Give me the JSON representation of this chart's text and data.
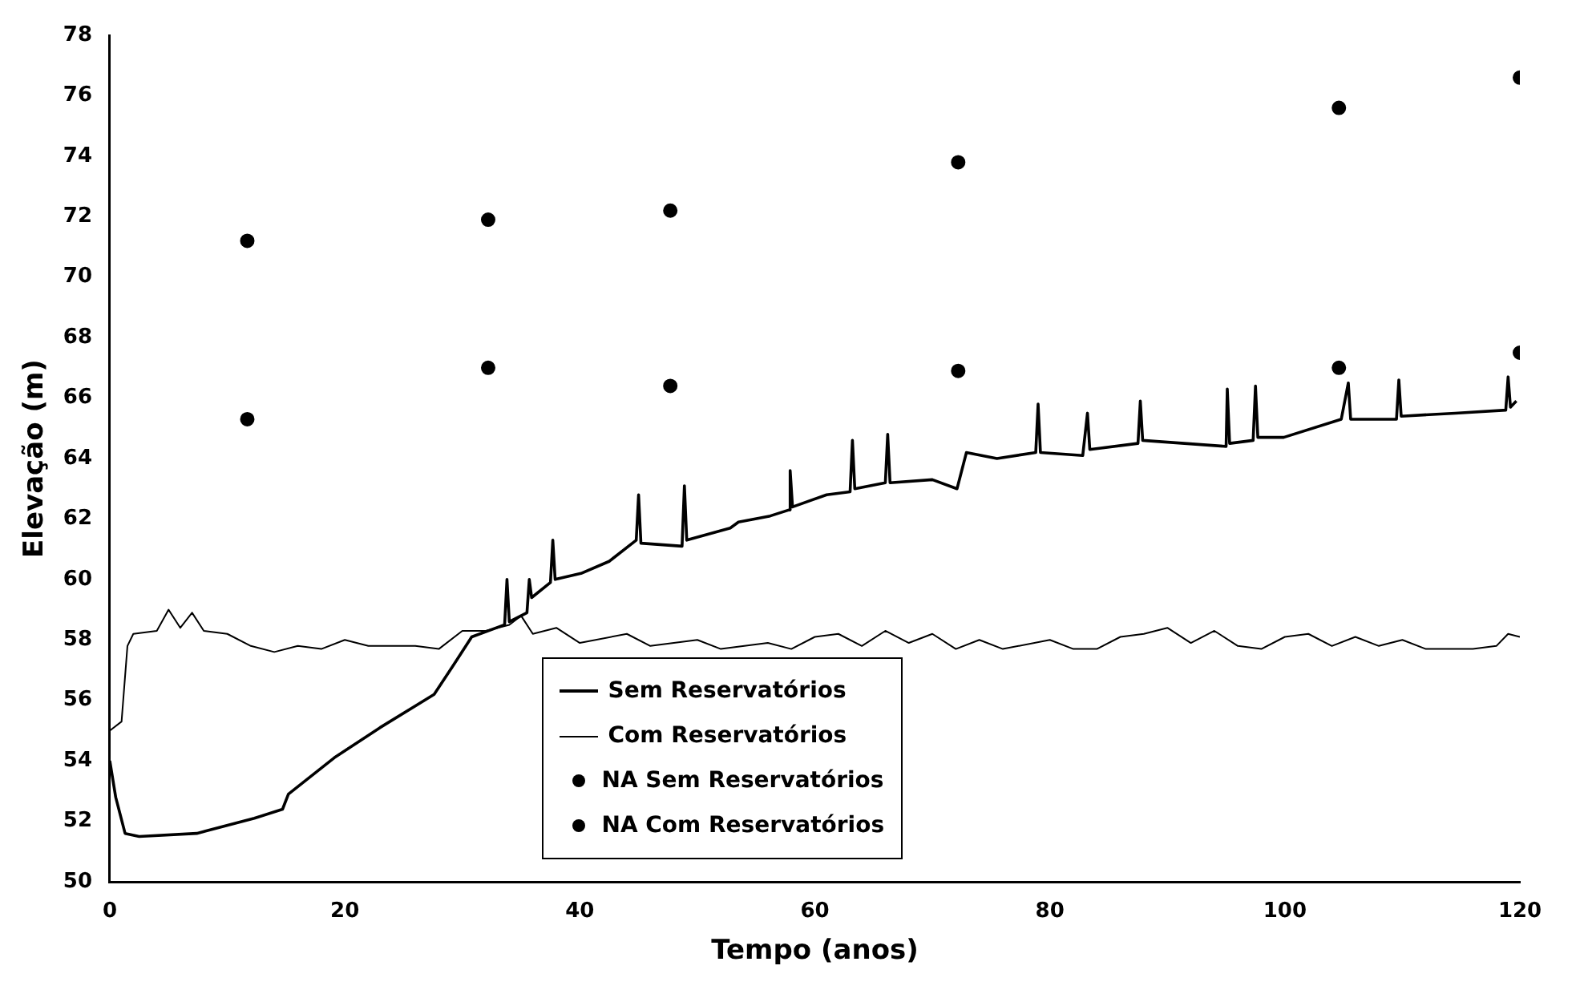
{
  "chart_data": {
    "type": "line",
    "xlabel": "Tempo (anos)",
    "ylabel": "Elevação (m)",
    "xlim": [
      0,
      120
    ],
    "xticks": [
      0,
      20,
      40,
      60,
      80,
      100,
      120
    ],
    "ylim": [
      50,
      78
    ],
    "yticks": [
      50,
      52,
      54,
      56,
      58,
      60,
      62,
      64,
      66,
      68,
      70,
      72,
      74,
      76,
      78
    ],
    "grid": false,
    "legend": "bottom",
    "marker": "none",
    "line_style": "solid",
    "series": [
      {
        "name": "Sem Reservatórios",
        "type": "line",
        "color": "#000000",
        "x": [
          0,
          0.5,
          1.3,
          2.5,
          7.4,
          12.3,
          14.7,
          15.2,
          19.1,
          23,
          27.6,
          29.3,
          30.8,
          33.6,
          33.8,
          34,
          35.5,
          35.7,
          35.9,
          37.5,
          37.7,
          37.9,
          40.1,
          42.5,
          44.8,
          45,
          45.2,
          48.7,
          48.9,
          49.1,
          52.8,
          53.5,
          56.2,
          57.8,
          57.9,
          58.1,
          61,
          63,
          63.2,
          63.4,
          66,
          66.2,
          66.4,
          70,
          72.1,
          72.9,
          75.5,
          78.8,
          79,
          79.2,
          82.8,
          83.2,
          83.4,
          87.5,
          87.7,
          87.9,
          95,
          95.1,
          95.3,
          97.3,
          97.5,
          97.7,
          99.9,
          104.8,
          105.4,
          105.6,
          109.5,
          109.7,
          109.9,
          114.5,
          118.8,
          119,
          119.2,
          119.7
        ],
        "values": [
          54,
          52.8,
          51.6,
          51.5,
          51.6,
          52.1,
          52.4,
          52.9,
          54.1,
          55.1,
          56.2,
          57.2,
          58.1,
          58.5,
          60,
          58.6,
          58.9,
          60,
          59.4,
          59.9,
          61.3,
          60,
          60.2,
          60.6,
          61.3,
          62.8,
          61.2,
          61.1,
          63.1,
          61.3,
          61.7,
          61.9,
          62.1,
          62.3,
          63.6,
          62.4,
          62.8,
          62.9,
          64.6,
          63,
          63.2,
          64.8,
          63.2,
          63.3,
          63,
          64.2,
          64,
          64.2,
          65.8,
          64.2,
          64.1,
          65.5,
          64.3,
          64.5,
          65.9,
          64.6,
          64.4,
          66.3,
          64.5,
          64.6,
          66.4,
          64.7,
          64.7,
          65.3,
          66.5,
          65.3,
          65.3,
          66.6,
          65.4,
          65.5,
          65.6,
          66.7,
          65.7,
          65.9
        ]
      },
      {
        "name": "Com Reservatórios",
        "type": "line",
        "color": "#000000",
        "x": [
          0,
          1,
          1.5,
          2,
          4,
          5,
          6,
          7,
          8,
          10,
          12,
          14,
          16,
          18,
          20,
          22,
          26,
          28,
          30,
          32,
          34,
          35,
          36,
          38,
          40,
          44,
          46,
          50,
          52,
          56,
          58,
          60,
          62,
          64,
          66,
          68,
          70,
          72,
          74,
          76,
          80,
          82,
          84,
          86,
          88,
          90,
          92,
          94,
          96,
          98,
          100,
          102,
          104,
          106,
          108,
          110,
          112,
          116,
          118,
          119,
          120
        ],
        "values": [
          55,
          55.3,
          57.8,
          58.2,
          58.3,
          59,
          58.4,
          58.9,
          58.3,
          58.2,
          57.8,
          57.6,
          57.8,
          57.7,
          58,
          57.8,
          57.8,
          57.7,
          58.3,
          58.3,
          58.5,
          58.8,
          58.2,
          58.4,
          57.9,
          58.2,
          57.8,
          58,
          57.7,
          57.9,
          57.7,
          58.1,
          58.2,
          57.8,
          58.3,
          57.9,
          58.2,
          57.7,
          58,
          57.7,
          58,
          57.7,
          57.7,
          58.1,
          58.2,
          58.4,
          57.9,
          58.3,
          57.8,
          57.7,
          58.1,
          58.2,
          57.8,
          58.1,
          57.8,
          58,
          57.7,
          57.7,
          57.8,
          58.2,
          58.1
        ]
      },
      {
        "name": "NA Sem Reservatórios",
        "type": "scatter",
        "marker": "circle",
        "color": "#000000",
        "x": [
          11.7,
          32.2,
          47.7,
          72.2,
          104.6,
          120
        ],
        "values": [
          71.2,
          71.9,
          72.2,
          73.8,
          75.6,
          76.6
        ]
      },
      {
        "name": "NA Com Reservatórios",
        "type": "scatter",
        "marker": "circle",
        "color": "#000000",
        "x": [
          11.7,
          32.2,
          47.7,
          72.2,
          104.6,
          120
        ],
        "values": [
          65.3,
          67,
          66.4,
          66.9,
          67,
          67.5
        ]
      }
    ]
  }
}
